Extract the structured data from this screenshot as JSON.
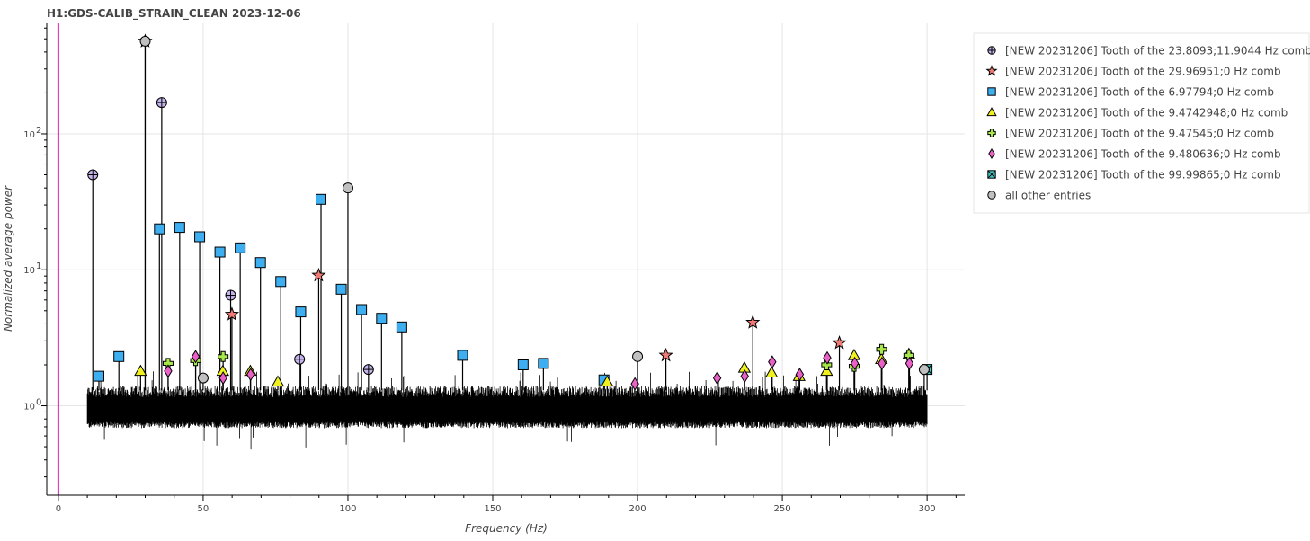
{
  "chart_data": {
    "type": "line",
    "title": "H1:GDS-CALIB_STRAIN_CLEAN 2023-12-06",
    "xlabel": "Frequency (Hz)",
    "ylabel": "Normalized average power",
    "xlim": [
      -4,
      313
    ],
    "ylim": [
      0.22,
      650
    ],
    "yscale": "log",
    "grid": true,
    "legend_position": "right",
    "x_ticks": [
      0,
      50,
      100,
      150,
      200,
      250,
      300
    ],
    "x_tick_labels": [
      "0",
      "50",
      "100",
      "150",
      "200",
      "250",
      "300"
    ],
    "y_ticks": [
      1,
      10,
      100
    ],
    "y_tick_labels": [
      {
        "base": "10",
        "exp": "0"
      },
      {
        "base": "10",
        "exp": "1"
      },
      {
        "base": "10",
        "exp": "2"
      }
    ],
    "vertical_line": {
      "x": 0,
      "color": "#e020c0"
    },
    "spectrum": {
      "x_start": 10,
      "x_end": 300,
      "baseline": 0.95,
      "color": "#000000"
    },
    "series": [
      {
        "name": "[NEW 20231206] Tooth of the 23.8093;11.9044 Hz comb",
        "marker": "circle-cross",
        "color": "#c5b4ec",
        "points": [
          [
            11.9,
            50
          ],
          [
            35.7,
            170
          ],
          [
            59.5,
            6.5
          ],
          [
            83.3,
            2.2
          ],
          [
            107.1,
            1.85
          ]
        ]
      },
      {
        "name": "[NEW 20231206] Tooth of the 29.96951;0 Hz comb",
        "marker": "star",
        "color": "#f07a76",
        "points": [
          [
            29.97,
            480
          ],
          [
            59.94,
            4.7
          ],
          [
            89.9,
            9.1
          ],
          [
            209.8,
            2.35
          ],
          [
            239.8,
            4.1
          ],
          [
            269.7,
            2.9
          ]
        ]
      },
      {
        "name": "[NEW 20231206] Tooth of the 6.97794;0 Hz comb",
        "marker": "square",
        "color": "#3daef0",
        "points": [
          [
            14.0,
            1.65
          ],
          [
            20.9,
            2.3
          ],
          [
            34.9,
            20
          ],
          [
            41.9,
            20.5
          ],
          [
            48.8,
            17.5
          ],
          [
            55.8,
            13.5
          ],
          [
            62.8,
            14.5
          ],
          [
            69.8,
            11.3
          ],
          [
            76.8,
            8.2
          ],
          [
            83.7,
            4.9
          ],
          [
            90.7,
            33
          ],
          [
            97.7,
            7.2
          ],
          [
            104.7,
            5.1
          ],
          [
            111.6,
            4.4
          ],
          [
            118.6,
            3.8
          ],
          [
            139.6,
            2.35
          ],
          [
            160.5,
            2.0
          ],
          [
            167.5,
            2.05
          ],
          [
            188.4,
            1.55
          ]
        ]
      },
      {
        "name": "[NEW 20231206] Tooth of the 9.4742948;0 Hz comb",
        "marker": "triangle",
        "color": "#f0f020",
        "points": [
          [
            28.4,
            1.8
          ],
          [
            56.8,
            1.8
          ],
          [
            66.3,
            1.8
          ],
          [
            75.8,
            1.5
          ],
          [
            189.5,
            1.5
          ],
          [
            236.9,
            1.9
          ],
          [
            246.3,
            1.75
          ],
          [
            255.8,
            1.65
          ],
          [
            265.3,
            1.8
          ],
          [
            274.8,
            2.35
          ],
          [
            284.2,
            2.2
          ],
          [
            293.7,
            2.4
          ]
        ]
      },
      {
        "name": "[NEW 20231206] Tooth of the 9.47545;0 Hz comb",
        "marker": "cross",
        "color": "#a8e84a",
        "points": [
          [
            37.9,
            2.05
          ],
          [
            47.4,
            2.15
          ],
          [
            56.9,
            2.3
          ],
          [
            265.3,
            2.0
          ],
          [
            274.8,
            1.95
          ],
          [
            284.3,
            2.6
          ],
          [
            293.7,
            2.35
          ]
        ]
      },
      {
        "name": "[NEW 20231206] Tooth of the 9.480636;0 Hz comb",
        "marker": "diamond",
        "color": "#e860c8",
        "points": [
          [
            37.9,
            1.8
          ],
          [
            47.4,
            2.3
          ],
          [
            56.9,
            1.6
          ],
          [
            66.4,
            1.7
          ],
          [
            199.1,
            1.45
          ],
          [
            227.5,
            1.6
          ],
          [
            237.0,
            1.65
          ],
          [
            246.5,
            2.1
          ],
          [
            256.0,
            1.7
          ],
          [
            265.5,
            2.25
          ],
          [
            275.0,
            2.05
          ],
          [
            284.4,
            2.05
          ],
          [
            293.9,
            2.05
          ]
        ]
      },
      {
        "name": "[NEW 20231206] Tooth of the 99.99865;0 Hz comb",
        "marker": "square-x",
        "color": "#40c8c8",
        "points": [
          [
            299.996,
            1.85
          ]
        ]
      },
      {
        "name": "all other entries",
        "marker": "circle",
        "color": "#c0c0c0",
        "points": [
          [
            30.0,
            480
          ],
          [
            50.0,
            1.6
          ],
          [
            100.0,
            40
          ],
          [
            200.0,
            2.3
          ],
          [
            299.0,
            1.85
          ]
        ]
      }
    ]
  }
}
